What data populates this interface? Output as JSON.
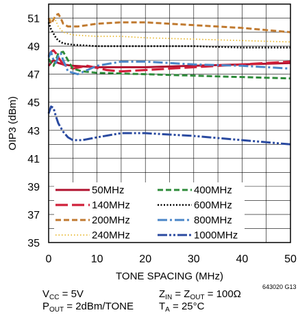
{
  "chart_data": {
    "type": "line",
    "xlabel": "TONE SPACING (MHz)",
    "ylabel": "OIP3 (dBm)",
    "xlim": [
      0,
      50
    ],
    "ylim": [
      35,
      52
    ],
    "xticks": [
      0,
      10,
      20,
      30,
      40,
      50
    ],
    "yticks": [
      35,
      37,
      39,
      41,
      43,
      45,
      47,
      49,
      51
    ],
    "grid": true,
    "legend_position": "bottom-left",
    "series": [
      {
        "name": "50MHz",
        "color": "#b0102e",
        "dash": "solid",
        "x": [
          0,
          0.5,
          1,
          1.5,
          2,
          3,
          5,
          10,
          15,
          20,
          30,
          40,
          50
        ],
        "y": [
          47.6,
          47.8,
          48.0,
          47.9,
          47.8,
          47.7,
          47.6,
          47.5,
          47.5,
          47.5,
          47.6,
          47.7,
          47.8
        ]
      },
      {
        "name": "140MHz",
        "color": "#d0203a",
        "dash": "longdash",
        "x": [
          0,
          0.5,
          1,
          1.5,
          2,
          3,
          5,
          8,
          12,
          15,
          20,
          30,
          40,
          50
        ],
        "y": [
          48.3,
          48.6,
          48.7,
          48.5,
          48.2,
          47.7,
          47.4,
          47.6,
          47.3,
          47.2,
          47.3,
          47.5,
          47.7,
          47.9
        ]
      },
      {
        "name": "200MHz",
        "color": "#c07a30",
        "dash": "dash",
        "x": [
          0,
          0.5,
          1,
          1.5,
          2,
          2.5,
          3,
          4,
          6,
          8,
          10,
          15,
          20,
          30,
          40,
          50
        ],
        "y": [
          51.0,
          50.6,
          50.9,
          51.2,
          51.3,
          51.0,
          50.6,
          50.4,
          50.4,
          50.5,
          50.6,
          50.7,
          50.7,
          50.5,
          50.3,
          50.0
        ]
      },
      {
        "name": "240MHz",
        "color": "#e8b830",
        "dash": "dot",
        "x": [
          0,
          0.5,
          1,
          1.5,
          2,
          3,
          5,
          10,
          15,
          20,
          30,
          40,
          50
        ],
        "y": [
          50.7,
          50.9,
          51.0,
          50.8,
          50.4,
          50.0,
          49.8,
          49.7,
          49.7,
          49.6,
          49.5,
          49.4,
          49.3
        ]
      },
      {
        "name": "400MHz",
        "color": "#2e8b3a",
        "dash": "dash",
        "x": [
          0,
          0.5,
          1,
          1.5,
          2,
          3,
          4,
          5,
          7,
          10,
          20,
          30,
          40,
          50
        ],
        "y": [
          48.1,
          47.8,
          47.6,
          48.0,
          48.5,
          48.6,
          48.0,
          47.4,
          47.2,
          47.1,
          47.0,
          46.9,
          46.8,
          46.7
        ]
      },
      {
        "name": "600MHz",
        "color": "#000000",
        "dash": "densedot",
        "x": [
          0,
          0.5,
          1,
          1.5,
          2,
          3,
          5,
          10,
          20,
          30,
          40,
          50
        ],
        "y": [
          50.7,
          50.2,
          49.9,
          49.6,
          49.4,
          49.2,
          49.1,
          49.0,
          49.0,
          49.0,
          48.9,
          48.9
        ]
      },
      {
        "name": "800MHz",
        "color": "#4a86c8",
        "dash": "dashdot",
        "x": [
          0,
          0.5,
          1,
          1.5,
          2,
          2.5,
          3,
          4,
          6,
          8,
          10,
          15,
          20,
          30,
          40,
          50
        ],
        "y": [
          48.2,
          48.6,
          48.0,
          47.8,
          48.3,
          48.5,
          48.0,
          47.2,
          47.0,
          47.3,
          47.6,
          47.9,
          47.9,
          47.7,
          47.6,
          47.4
        ]
      },
      {
        "name": "1000MHz",
        "color": "#2a4aa0",
        "dash": "dashdotdot",
        "x": [
          0,
          0.5,
          1,
          1.5,
          2,
          3,
          4,
          5,
          7,
          10,
          15,
          20,
          30,
          40,
          50
        ],
        "y": [
          44.2,
          44.7,
          44.6,
          44.0,
          43.5,
          42.9,
          42.5,
          42.3,
          42.3,
          42.5,
          42.8,
          42.8,
          42.6,
          42.3,
          42.0
        ]
      }
    ]
  },
  "figure_id": "643020 G13",
  "conditions": {
    "vcc": {
      "sym": "V",
      "sub": "CC",
      "rest": " = 5V"
    },
    "zin": {
      "sym1": "Z",
      "sub1": "IN",
      "mid": " = Z",
      "sub2": "OUT",
      "rest": " = 100Ω"
    },
    "pout": {
      "sym": "P",
      "sub": "OUT",
      "rest": " = 2dBm/TONE"
    },
    "ta": {
      "sym": "T",
      "sub": "A",
      "rest": " = 25°C"
    }
  }
}
